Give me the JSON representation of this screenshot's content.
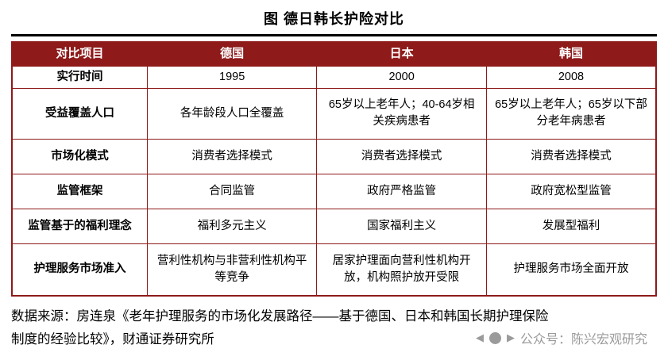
{
  "title": "图  德日韩长护险对比",
  "chart_data": {
    "type": "table",
    "title": "图  德日韩长护险对比",
    "columns": [
      "对比项目",
      "德国",
      "日本",
      "韩国"
    ],
    "rows": [
      [
        "实行时间",
        "1995",
        "2000",
        "2008"
      ],
      [
        "受益覆盖人口",
        "各年龄段人口全覆盖",
        "65岁以上老年人；40-64岁相关疾病患者",
        "65岁以上老年人；65岁以下部分老年病患者"
      ],
      [
        "市场化模式",
        "消费者选择模式",
        "消费者选择模式",
        "消费者选择模式"
      ],
      [
        "监管框架",
        "合同监管",
        "政府严格监管",
        "政府宽松型监管"
      ],
      [
        "监管基于的福利理念",
        "福利多元主义",
        "国家福利主义",
        "发展型福利"
      ],
      [
        "护理服务市场准入",
        "营利性机构与非营利性机构平等竞争",
        "居家护理面向营利性机构开放，机构照护放开受限",
        "护理服务市场全面开放"
      ]
    ]
  },
  "footer": {
    "source_line1": "数据来源：房连泉《老年护理服务的市场化发展路径——基于德国、日本和韩国长期护理保险",
    "source_line2": "制度的经验比较》，财通证券研究所"
  },
  "watermark": {
    "text": "公众号：陈兴宏观研究"
  },
  "colors": {
    "header_bg": "#8E1A1A",
    "border": "#8E1A1A",
    "watermark": "#9b9b9b"
  }
}
